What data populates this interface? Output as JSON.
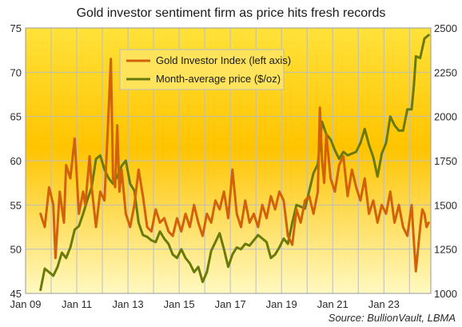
{
  "chart_data": {
    "type": "line",
    "title": "Gold investor sentiment firm as price hits fresh records",
    "source": "Source:  BullionVault, LBMA",
    "x_ticks": [
      "Jan 09",
      "Jan 11",
      "Jan 13",
      "Jan 15",
      "Jan 17",
      "Jan 19",
      "Jan 21",
      "Jan 23"
    ],
    "x_range": [
      "2009-01",
      "2024-11"
    ],
    "y_left": {
      "ticks": [
        45,
        50,
        55,
        60,
        65,
        70,
        75
      ],
      "range": [
        45,
        75
      ]
    },
    "y_right": {
      "ticks": [
        1000,
        1250,
        1500,
        1750,
        2000,
        2250,
        2500
      ],
      "range": [
        1000,
        2500
      ]
    },
    "grid": true,
    "legend_position": "top-center",
    "background_colors": [
      "#FFE23A",
      "#FFC400",
      "#FFF9C0"
    ],
    "series": [
      {
        "name": "Gold Investor Index (left axis)",
        "axis": "left",
        "color": "#D2620A",
        "points": [
          [
            "2009-08",
            54.0
          ],
          [
            "2009-10",
            52.5
          ],
          [
            "2009-12",
            57.0
          ],
          [
            "2010-02",
            55.0
          ],
          [
            "2010-03",
            49.0
          ],
          [
            "2010-05",
            56.5
          ],
          [
            "2010-07",
            53.0
          ],
          [
            "2010-08",
            59.5
          ],
          [
            "2010-10",
            58.0
          ],
          [
            "2010-12",
            62.5
          ],
          [
            "2011-02",
            54.0
          ],
          [
            "2011-04",
            56.5
          ],
          [
            "2011-05",
            55.0
          ],
          [
            "2011-07",
            60.5
          ],
          [
            "2011-08",
            57.0
          ],
          [
            "2011-10",
            52.5
          ],
          [
            "2011-12",
            56.5
          ],
          [
            "2012-02",
            55.5
          ],
          [
            "2012-04",
            66.0
          ],
          [
            "2012-05",
            71.5
          ],
          [
            "2012-06",
            58.0
          ],
          [
            "2012-07",
            57.0
          ],
          [
            "2012-08",
            64.0
          ],
          [
            "2012-09",
            56.5
          ],
          [
            "2012-10",
            59.0
          ],
          [
            "2012-12",
            54.0
          ],
          [
            "2013-02",
            52.5
          ],
          [
            "2013-04",
            55.0
          ],
          [
            "2013-06",
            59.0
          ],
          [
            "2013-08",
            56.0
          ],
          [
            "2013-10",
            52.5
          ],
          [
            "2013-12",
            52.0
          ],
          [
            "2014-02",
            54.5
          ],
          [
            "2014-04",
            53.0
          ],
          [
            "2014-06",
            53.5
          ],
          [
            "2014-08",
            52.0
          ],
          [
            "2014-10",
            51.5
          ],
          [
            "2014-12",
            53.5
          ],
          [
            "2015-02",
            52.0
          ],
          [
            "2015-04",
            54.0
          ],
          [
            "2015-06",
            52.5
          ],
          [
            "2015-08",
            55.0
          ],
          [
            "2015-10",
            53.0
          ],
          [
            "2015-12",
            51.5
          ],
          [
            "2016-02",
            54.0
          ],
          [
            "2016-04",
            53.0
          ],
          [
            "2016-06",
            55.5
          ],
          [
            "2016-08",
            54.5
          ],
          [
            "2016-10",
            56.5
          ],
          [
            "2016-12",
            53.5
          ],
          [
            "2017-02",
            59.0
          ],
          [
            "2017-04",
            54.0
          ],
          [
            "2017-06",
            52.5
          ],
          [
            "2017-08",
            55.5
          ],
          [
            "2017-10",
            53.0
          ],
          [
            "2017-12",
            54.0
          ],
          [
            "2018-02",
            52.5
          ],
          [
            "2018-04",
            55.0
          ],
          [
            "2018-06",
            53.5
          ],
          [
            "2018-08",
            56.0
          ],
          [
            "2018-10",
            54.5
          ],
          [
            "2018-12",
            56.5
          ],
          [
            "2019-02",
            55.5
          ],
          [
            "2019-04",
            51.5
          ],
          [
            "2019-06",
            50.5
          ],
          [
            "2019-08",
            54.5
          ],
          [
            "2019-10",
            53.0
          ],
          [
            "2019-12",
            55.5
          ],
          [
            "2020-02",
            56.0
          ],
          [
            "2020-04",
            54.0
          ],
          [
            "2020-06",
            56.5
          ],
          [
            "2020-07",
            66.0
          ],
          [
            "2020-08",
            60.0
          ],
          [
            "2020-09",
            57.5
          ],
          [
            "2020-10",
            63.0
          ],
          [
            "2020-12",
            58.0
          ],
          [
            "2021-02",
            56.5
          ],
          [
            "2021-04",
            59.5
          ],
          [
            "2021-06",
            60.5
          ],
          [
            "2021-08",
            56.0
          ],
          [
            "2021-10",
            59.0
          ],
          [
            "2021-12",
            57.0
          ],
          [
            "2022-02",
            55.5
          ],
          [
            "2022-04",
            58.0
          ],
          [
            "2022-06",
            54.0
          ],
          [
            "2022-08",
            55.5
          ],
          [
            "2022-10",
            53.0
          ],
          [
            "2022-12",
            55.0
          ],
          [
            "2023-02",
            54.0
          ],
          [
            "2023-04",
            56.5
          ],
          [
            "2023-06",
            53.0
          ],
          [
            "2023-08",
            55.0
          ],
          [
            "2023-10",
            52.5
          ],
          [
            "2023-12",
            51.5
          ],
          [
            "2024-02",
            55.0
          ],
          [
            "2024-03",
            51.0
          ],
          [
            "2024-04",
            47.5
          ],
          [
            "2024-06",
            52.5
          ],
          [
            "2024-07",
            54.5
          ],
          [
            "2024-08",
            54.0
          ],
          [
            "2024-09",
            52.5
          ],
          [
            "2024-10",
            53.0
          ]
        ]
      },
      {
        "name": "Month-average price ($/oz)",
        "axis": "right",
        "color": "#6A7A0A",
        "points": [
          [
            "2009-08",
            1020
          ],
          [
            "2009-10",
            1140
          ],
          [
            "2009-12",
            1120
          ],
          [
            "2010-02",
            1100
          ],
          [
            "2010-04",
            1150
          ],
          [
            "2010-06",
            1230
          ],
          [
            "2010-08",
            1200
          ],
          [
            "2010-10",
            1260
          ],
          [
            "2010-12",
            1360
          ],
          [
            "2011-02",
            1380
          ],
          [
            "2011-04",
            1450
          ],
          [
            "2011-06",
            1530
          ],
          [
            "2011-08",
            1600
          ],
          [
            "2011-10",
            1760
          ],
          [
            "2011-12",
            1780
          ],
          [
            "2012-02",
            1700
          ],
          [
            "2012-04",
            1650
          ],
          [
            "2012-06",
            1620
          ],
          [
            "2012-08",
            1660
          ],
          [
            "2012-10",
            1720
          ],
          [
            "2012-12",
            1750
          ],
          [
            "2013-02",
            1620
          ],
          [
            "2013-04",
            1580
          ],
          [
            "2013-06",
            1400
          ],
          [
            "2013-08",
            1330
          ],
          [
            "2013-10",
            1320
          ],
          [
            "2013-12",
            1300
          ],
          [
            "2014-02",
            1290
          ],
          [
            "2014-04",
            1350
          ],
          [
            "2014-06",
            1310
          ],
          [
            "2014-08",
            1280
          ],
          [
            "2014-10",
            1220
          ],
          [
            "2014-12",
            1200
          ],
          [
            "2015-02",
            1250
          ],
          [
            "2015-04",
            1200
          ],
          [
            "2015-06",
            1170
          ],
          [
            "2015-08",
            1120
          ],
          [
            "2015-10",
            1150
          ],
          [
            "2015-12",
            1065
          ],
          [
            "2016-02",
            1120
          ],
          [
            "2016-04",
            1240
          ],
          [
            "2016-06",
            1290
          ],
          [
            "2016-08",
            1340
          ],
          [
            "2016-10",
            1250
          ],
          [
            "2016-12",
            1150
          ],
          [
            "2017-02",
            1220
          ],
          [
            "2017-04",
            1260
          ],
          [
            "2017-06",
            1250
          ],
          [
            "2017-08",
            1280
          ],
          [
            "2017-10",
            1270
          ],
          [
            "2017-12",
            1300
          ],
          [
            "2018-02",
            1330
          ],
          [
            "2018-04",
            1310
          ],
          [
            "2018-06",
            1290
          ],
          [
            "2018-08",
            1200
          ],
          [
            "2018-10",
            1220
          ],
          [
            "2018-12",
            1260
          ],
          [
            "2019-02",
            1310
          ],
          [
            "2019-04",
            1280
          ],
          [
            "2019-06",
            1400
          ],
          [
            "2019-08",
            1500
          ],
          [
            "2019-10",
            1490
          ],
          [
            "2019-12",
            1480
          ],
          [
            "2020-02",
            1580
          ],
          [
            "2020-04",
            1680
          ],
          [
            "2020-06",
            1730
          ],
          [
            "2020-08",
            1970
          ],
          [
            "2020-10",
            1900
          ],
          [
            "2020-12",
            1870
          ],
          [
            "2021-02",
            1810
          ],
          [
            "2021-04",
            1760
          ],
          [
            "2021-06",
            1800
          ],
          [
            "2021-08",
            1780
          ],
          [
            "2021-10",
            1790
          ],
          [
            "2021-12",
            1800
          ],
          [
            "2022-02",
            1850
          ],
          [
            "2022-04",
            1930
          ],
          [
            "2022-06",
            1840
          ],
          [
            "2022-08",
            1770
          ],
          [
            "2022-10",
            1660
          ],
          [
            "2022-12",
            1790
          ],
          [
            "2023-02",
            1850
          ],
          [
            "2023-04",
            2000
          ],
          [
            "2023-06",
            1950
          ],
          [
            "2023-08",
            1920
          ],
          [
            "2023-10",
            1920
          ],
          [
            "2023-12",
            2040
          ],
          [
            "2024-02",
            2040
          ],
          [
            "2024-03",
            2170
          ],
          [
            "2024-04",
            2340
          ],
          [
            "2024-06",
            2330
          ],
          [
            "2024-08",
            2440
          ],
          [
            "2024-10",
            2460
          ]
        ]
      }
    ]
  }
}
